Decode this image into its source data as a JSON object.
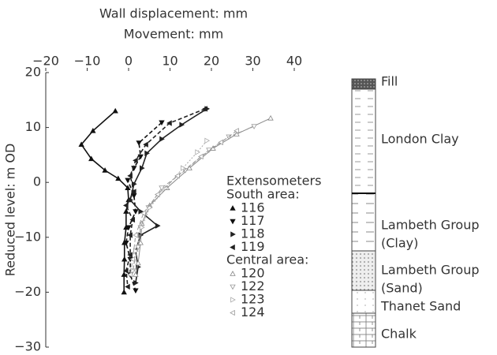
{
  "chart_data": {
    "type": "line",
    "title": "Wall displacement: mm",
    "subtitle": "Movement: mm",
    "y_label": "Reduced level: m OD",
    "xlim": [
      -20,
      40
    ],
    "ylim": [
      -30,
      20
    ],
    "xticks": [
      {
        "value": -20,
        "label": "−20"
      },
      {
        "value": -10,
        "label": "−10"
      },
      0,
      10,
      20,
      30,
      40
    ],
    "yticks": [
      {
        "value": -30,
        "label": "−30"
      },
      {
        "value": -20,
        "label": "−20"
      },
      {
        "value": -10,
        "label": "−10"
      },
      0,
      10,
      20
    ],
    "legend": {
      "title": "Extensometers",
      "groups": [
        {
          "label": "South area:"
        },
        {
          "label": "Central area:"
        }
      ]
    },
    "series": [
      {
        "name": "116",
        "color": "#111",
        "marker": "up",
        "hollow": false,
        "dash": "solid",
        "x": [
          -3.2,
          -8.6,
          -11.4,
          -9,
          -5.7,
          -2.5,
          -0.2,
          0,
          -0.6,
          -0.6,
          -1,
          -1,
          -1.1,
          -1.1
        ],
        "values": [
          13,
          9.4,
          6.9,
          4.3,
          2.2,
          0.7,
          -1,
          -3.2,
          -5.3,
          -8.2,
          -11,
          -14,
          -16.8,
          -20
        ]
      },
      {
        "name": "117",
        "color": "#111",
        "marker": "down",
        "hollow": false,
        "dash": "dashed",
        "x": [
          8,
          2.5,
          2.9,
          1.3,
          -0.2,
          1.3,
          1.7,
          0,
          -0.6,
          0.4,
          0.4,
          1.7
        ],
        "values": [
          10.9,
          7.2,
          4.7,
          2.6,
          0.4,
          -2.4,
          -5.3,
          -8.2,
          -11,
          -14,
          -16.8,
          -19.7
        ]
      },
      {
        "name": "118",
        "color": "#222",
        "marker": "right",
        "hollow": false,
        "dash": "solid",
        "x": [
          18.9,
          12.8,
          8,
          4.4,
          3.2,
          1.3,
          0.4,
          2.9,
          7,
          2.9,
          1.7,
          2.3,
          1.7
        ],
        "values": [
          13.4,
          10.5,
          7.9,
          5.3,
          2.6,
          -0.3,
          -3.2,
          -5.3,
          -7.9,
          -9.6,
          -12.5,
          -15.4,
          -18.3
        ]
      },
      {
        "name": "119",
        "color": "#222",
        "marker": "left",
        "hollow": false,
        "dash": "dashed",
        "x": [
          18.5,
          9.9,
          4.2,
          1.7,
          0.4,
          1.3,
          -0.6,
          1,
          0.4,
          0.4,
          -0.6,
          -0.2
        ],
        "values": [
          13.4,
          10.8,
          6.9,
          4,
          1.2,
          -1.7,
          -4.2,
          -6.8,
          -9.6,
          -13.2,
          -16.1,
          -19
        ]
      },
      {
        "name": "120",
        "color": "#888",
        "marker": "up",
        "hollow": true,
        "dash": "solid",
        "x": [
          34.3,
          26.1,
          20.4,
          14.7,
          9.3,
          5.1,
          3.2,
          2.9,
          2.3,
          1.7
        ],
        "values": [
          11.7,
          8.8,
          6.2,
          2.6,
          -1,
          -4.2,
          -7.5,
          -11,
          -14.7,
          -16.8
        ]
      },
      {
        "name": "122",
        "color": "#999",
        "marker": "down",
        "hollow": true,
        "dash": "dashed",
        "x": [
          30.3,
          24.2,
          19.4,
          13.7,
          8,
          4.8,
          2.9,
          2.3,
          1
        ],
        "values": [
          10.2,
          8.3,
          5.9,
          2.2,
          -1,
          -4.6,
          -8.2,
          -11.8,
          -16.1
        ]
      },
      {
        "name": "123",
        "color": "#aaa",
        "marker": "right",
        "hollow": true,
        "dash": "dotted",
        "x": [
          18.9,
          16.6,
          13.1,
          9,
          5.1,
          3.2,
          1.7,
          1
        ],
        "values": [
          7.6,
          5.5,
          2.6,
          -1,
          -4.6,
          -8.2,
          -12.5,
          -16.1
        ]
      },
      {
        "name": "124",
        "color": "#999",
        "marker": "left",
        "hollow": true,
        "dash": "dashed",
        "x": [
          26.1,
          22.3,
          17.5,
          11.8,
          7,
          3.6,
          1.7,
          1,
          0.4
        ],
        "values": [
          9.4,
          7.3,
          4.7,
          1.2,
          -2.2,
          -5.6,
          -9.6,
          -14,
          -16.8
        ]
      }
    ],
    "strata": [
      {
        "lines": [
          "Fill"
        ]
      },
      {
        "lines": [
          "London Clay"
        ]
      },
      {
        "lines": [
          "Lambeth Group",
          "(Clay)"
        ]
      },
      {
        "lines": [
          "Lambeth Group",
          "(Sand)"
        ]
      },
      {
        "lines": [
          "Thanet Sand"
        ]
      },
      {
        "lines": [
          "Chalk"
        ]
      }
    ]
  }
}
